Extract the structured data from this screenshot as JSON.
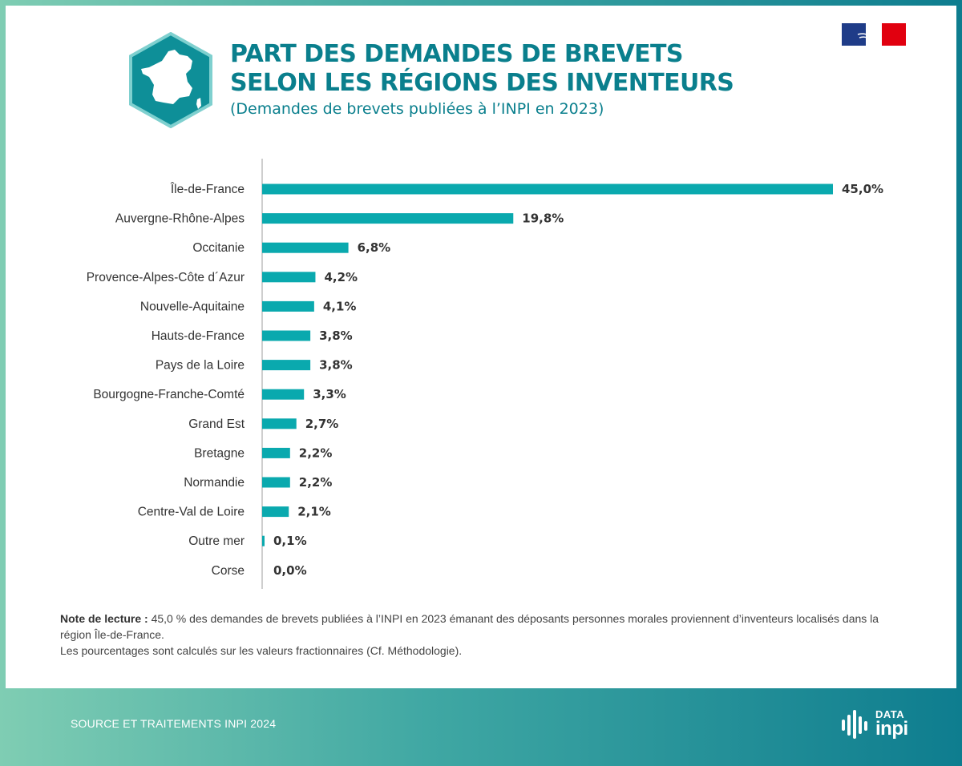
{
  "header": {
    "title_line1": "PART DES DEMANDES DE BREVETS",
    "title_line2": "SELON LES RÉGIONS DES INVENTEURS",
    "subtitle": "(Demandes de brevets publiées à l’INPI en 2023)"
  },
  "colors": {
    "bar": "#0aa9ae",
    "title": "#0a7f8d",
    "hexagon": "#0e8f98"
  },
  "chart_data": {
    "type": "bar",
    "orientation": "horizontal",
    "categories": [
      "Île-de-France",
      "Auvergne-Rhône-Alpes",
      "Occitanie",
      "Provence-Alpes-Côte d´Azur",
      "Nouvelle-Aquitaine",
      "Hauts-de-France",
      "Pays de la Loire",
      "Bourgogne-Franche-Comté",
      "Grand Est",
      "Bretagne",
      "Normandie",
      "Centre-Val de Loire",
      "Outre mer",
      "Corse"
    ],
    "values": [
      45.0,
      19.8,
      6.8,
      4.2,
      4.1,
      3.8,
      3.8,
      3.3,
      2.7,
      2.2,
      2.2,
      2.1,
      0.1,
      0.0
    ],
    "value_labels": [
      "45,0%",
      "19,8%",
      "6,8%",
      "4,2%",
      "4,1%",
      "3,8%",
      "3,8%",
      "3,3%",
      "2,7%",
      "2,2%",
      "2,2%",
      "2,1%",
      "0,1%",
      "0,0%"
    ],
    "unit": "%",
    "xlim": [
      0,
      45
    ],
    "grid": false
  },
  "note": {
    "label": "Note de lecture :",
    "text": " 45,0 % des demandes de brevets publiées à l’INPI en 2023 émanant des déposants personnes morales proviennent d’inventeurs localisés dans la région Île-de-France.",
    "line2": "Les pourcentages sont calculés sur les valeurs fractionnaires (Cf. Méthodologie)."
  },
  "footer": {
    "source": "SOURCE ET TRAITEMENTS INPI 2024",
    "logo_top": "DATA",
    "logo_bottom": "inpi"
  }
}
